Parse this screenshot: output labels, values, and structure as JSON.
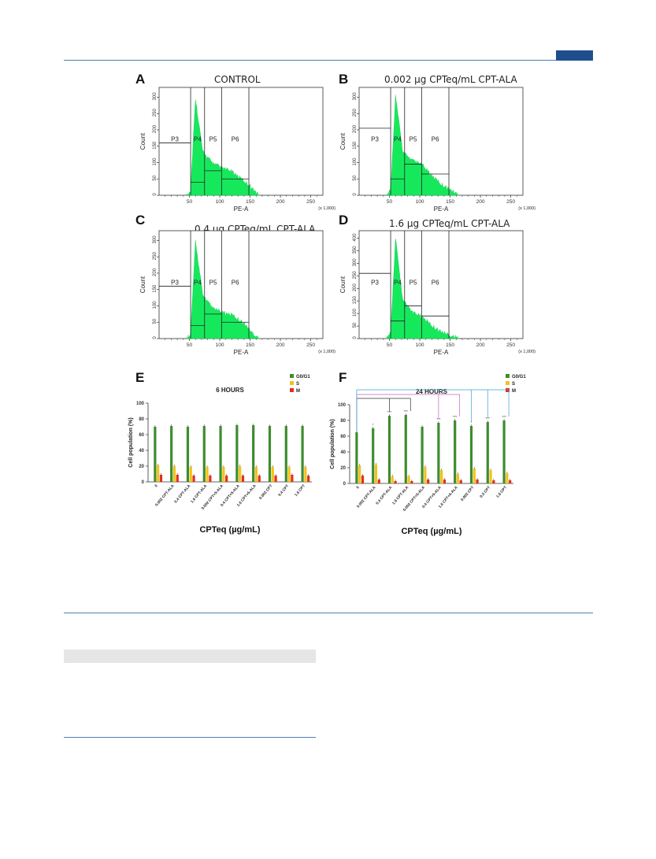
{
  "header": {
    "accent_color": "#1f4e8c",
    "rule_color": "#4f7fb3"
  },
  "histograms": [
    {
      "letter": "A",
      "title": "CONTROL",
      "y_ticks": [
        "0",
        "50",
        "100",
        "150",
        "200",
        "250",
        "300"
      ],
      "ymax": 330,
      "x_ticks": [
        "50",
        "100",
        "150",
        "200",
        "250"
      ],
      "xlabel": "PE-A",
      "ylabel": "Count",
      "x_scale_note": "(x 1,000)",
      "gates": [
        {
          "label": "P3"
        },
        {
          "label": "P4"
        },
        {
          "label": "P5"
        },
        {
          "label": "P6"
        }
      ],
      "gate_lines": [
        160,
        40,
        75,
        50
      ]
    },
    {
      "letter": "B",
      "title": "0.002 µg CPTeq/mL CPT-ALA",
      "y_ticks": [
        "0",
        "50",
        "100",
        "150",
        "200",
        "250",
        "300"
      ],
      "ymax": 330,
      "x_ticks": [
        "50",
        "100",
        "150",
        "200",
        "250"
      ],
      "xlabel": "PE-A",
      "ylabel": "Count",
      "x_scale_note": "(x 1,000)",
      "gates": [
        {
          "label": "P3"
        },
        {
          "label": "P4"
        },
        {
          "label": "P5"
        },
        {
          "label": "P6"
        }
      ],
      "gate_lines": [
        205,
        50,
        95,
        65
      ]
    },
    {
      "letter": "C",
      "title": "0.4 µg CPTeq/mL CPT-ALA",
      "y_ticks": [
        "0",
        "50",
        "100",
        "150",
        "200",
        "250",
        "300"
      ],
      "ymax": 330,
      "x_ticks": [
        "50",
        "100",
        "150",
        "200",
        "250"
      ],
      "xlabel": "PE-A",
      "ylabel": "Count",
      "x_scale_note": "(x 1,000)",
      "gates": [
        {
          "label": "P3"
        },
        {
          "label": "P4"
        },
        {
          "label": "P5"
        },
        {
          "label": "P6"
        }
      ],
      "gate_lines": [
        160,
        40,
        75,
        50
      ]
    },
    {
      "letter": "D",
      "title": "1.6 µg CPTeq/mL CPT-ALA",
      "y_ticks": [
        "0",
        "50",
        "100",
        "150",
        "200",
        "250",
        "300",
        "350",
        "400"
      ],
      "ymax": 430,
      "x_ticks": [
        "50",
        "100",
        "150",
        "200",
        "250"
      ],
      "xlabel": "PE-A",
      "ylabel": "Count",
      "x_scale_note": "(x 1,000)",
      "gates": [
        {
          "label": "P3"
        },
        {
          "label": "P4"
        },
        {
          "label": "P5"
        },
        {
          "label": "P6"
        }
      ],
      "gate_lines": [
        260,
        70,
        130,
        90
      ]
    }
  ],
  "chart_data": [
    {
      "type": "bar",
      "letter": "E",
      "title": "6 HOURS",
      "ylabel": "Cell population (%)",
      "xlabel": "CPTeq (µg/mL)",
      "ylim": [
        0,
        100
      ],
      "y_ticks": [
        "0",
        "20",
        "40",
        "60",
        "80",
        "100"
      ],
      "categories": [
        "0",
        "0.002 CPT-ALA",
        "0.4 CPT-ALA",
        "1.6 CPT-ALA",
        "0.002 CPT+5-ALA",
        "0.4 CPT+5-ALA",
        "1.6 CPT+5-ALA",
        "0.002 CPT",
        "0.4 CPT",
        "1.6 CPT"
      ],
      "series": [
        {
          "name": "G0/G1",
          "color": "#3e8c2f",
          "values": [
            70,
            71,
            70,
            71,
            71,
            72,
            72,
            71,
            71,
            71
          ]
        },
        {
          "name": "S",
          "color": "#f2c21b",
          "values": [
            21,
            20,
            19,
            19,
            19,
            20,
            19,
            19,
            19,
            19
          ]
        },
        {
          "name": "M",
          "color": "#e0301e",
          "values": [
            9,
            9,
            8,
            8,
            8,
            8,
            8,
            8,
            9,
            8
          ]
        }
      ],
      "significance": [
        "",
        "",
        "",
        "",
        "",
        "",
        "",
        "",
        "",
        ""
      ]
    },
    {
      "type": "bar",
      "letter": "F",
      "title": "24 HOURS",
      "ylabel": "Cell population (%)",
      "xlabel": "CPTeq (µg/mL)",
      "ylim": [
        0,
        100
      ],
      "y_ticks": [
        "0",
        "20",
        "40",
        "60",
        "80",
        "100"
      ],
      "categories": [
        "0",
        "0.002 CPT-ALA",
        "0.4 CPT-ALA",
        "1.6 CPT-ALA",
        "0.002 CPT+5-ALA",
        "0.4 CPT+5-ALA",
        "1.6 CPT+5-ALA",
        "0.002 CPT",
        "0.4 CPT",
        "1.6 CPT"
      ],
      "series": [
        {
          "name": "G0/G1",
          "color": "#3e8c2f",
          "values": [
            65,
            70,
            86,
            87,
            72,
            77,
            80,
            73,
            78,
            80
          ]
        },
        {
          "name": "S",
          "color": "#f2c21b",
          "values": [
            23,
            24,
            9,
            9,
            21,
            17,
            12,
            19,
            17,
            13
          ]
        },
        {
          "name": "M",
          "color": "#e0301e",
          "values": [
            10,
            5,
            3,
            3,
            5,
            5,
            4,
            5,
            4,
            4
          ]
        }
      ],
      "significance": [
        "",
        "*",
        "***",
        "***",
        "",
        "***",
        "***",
        "*",
        "***",
        "***"
      ]
    }
  ]
}
